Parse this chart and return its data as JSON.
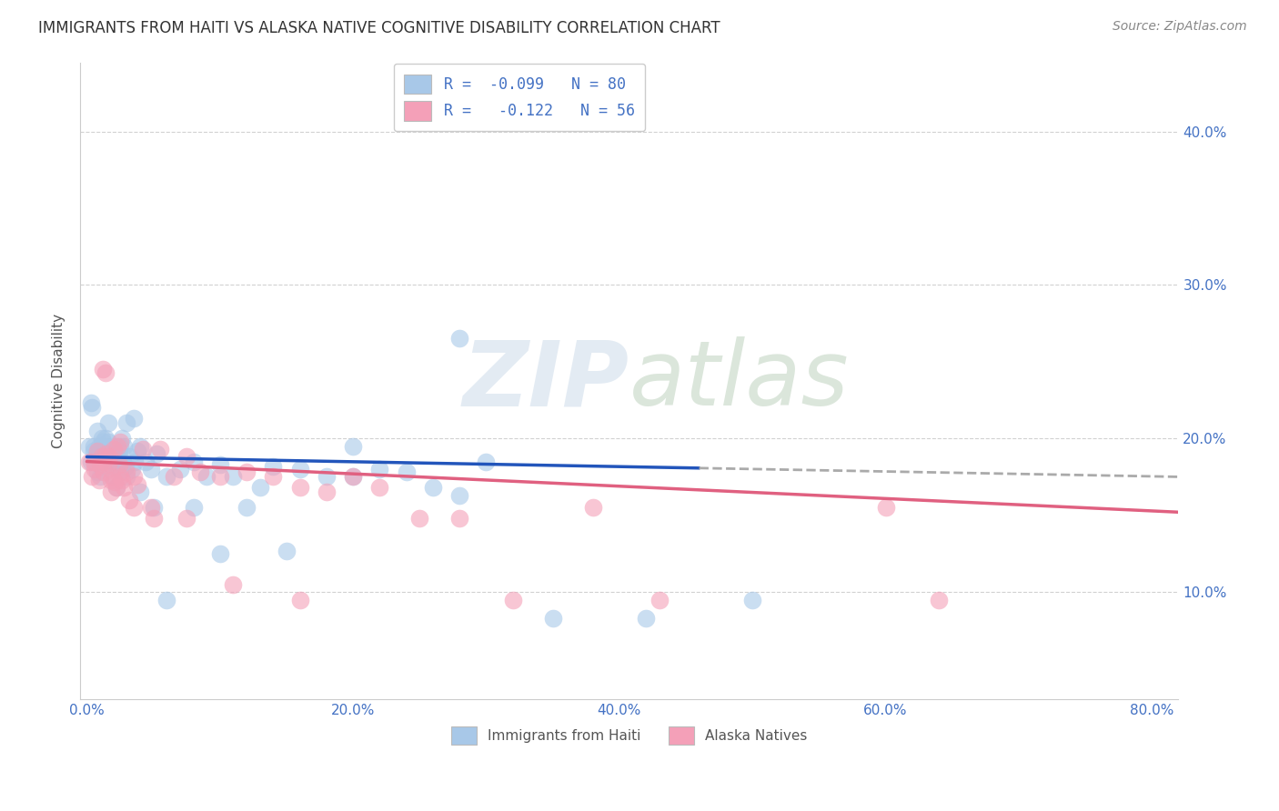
{
  "title": "IMMIGRANTS FROM HAITI VS ALASKA NATIVE COGNITIVE DISABILITY CORRELATION CHART",
  "source": "Source: ZipAtlas.com",
  "ylabel": "Cognitive Disability",
  "xlabel_ticks": [
    "0.0%",
    "20.0%",
    "40.0%",
    "60.0%",
    "80.0%"
  ],
  "xlabel_vals": [
    0.0,
    0.2,
    0.4,
    0.6,
    0.8
  ],
  "ylabel_ticks": [
    "10.0%",
    "20.0%",
    "30.0%",
    "40.0%"
  ],
  "ylabel_vals": [
    0.1,
    0.2,
    0.3,
    0.4
  ],
  "xlim": [
    -0.005,
    0.82
  ],
  "ylim": [
    0.03,
    0.445
  ],
  "legend1_label": "R =  -0.099   N = 80",
  "legend2_label": "R =   -0.122   N = 56",
  "legend_bottom1": "Immigrants from Haiti",
  "legend_bottom2": "Alaska Natives",
  "blue_color": "#A8C8E8",
  "pink_color": "#F4A0B8",
  "blue_line_color": "#2255BB",
  "pink_line_color": "#E06080",
  "dashed_line_color": "#AAAAAA",
  "watermark_color": "#C8D8E8",
  "blue_line_x_start": 0.0,
  "blue_line_x_solid_end": 0.46,
  "blue_line_x_dash_end": 0.82,
  "blue_line_y_start": 0.188,
  "blue_line_y_end": 0.175,
  "pink_line_x_start": 0.0,
  "pink_line_x_end": 0.82,
  "pink_line_y_start": 0.185,
  "pink_line_y_end": 0.152,
  "blue_scatter_x": [
    0.002,
    0.003,
    0.004,
    0.005,
    0.006,
    0.007,
    0.008,
    0.009,
    0.01,
    0.011,
    0.012,
    0.013,
    0.014,
    0.015,
    0.016,
    0.017,
    0.018,
    0.019,
    0.02,
    0.021,
    0.022,
    0.023,
    0.024,
    0.025,
    0.026,
    0.027,
    0.028,
    0.029,
    0.03,
    0.032,
    0.034,
    0.036,
    0.038,
    0.04,
    0.044,
    0.048,
    0.052,
    0.06,
    0.07,
    0.08,
    0.09,
    0.1,
    0.11,
    0.12,
    0.13,
    0.14,
    0.16,
    0.18,
    0.2,
    0.22,
    0.24,
    0.26,
    0.28,
    0.3,
    0.006,
    0.008,
    0.01,
    0.012,
    0.014,
    0.016,
    0.018,
    0.02,
    0.022,
    0.025,
    0.03,
    0.035,
    0.04,
    0.05,
    0.06,
    0.08,
    0.1,
    0.15,
    0.2,
    0.28,
    0.35,
    0.42,
    0.5,
    0.003,
    0.005,
    0.007
  ],
  "blue_scatter_y": [
    0.195,
    0.185,
    0.22,
    0.195,
    0.185,
    0.19,
    0.205,
    0.195,
    0.188,
    0.2,
    0.185,
    0.195,
    0.2,
    0.192,
    0.198,
    0.185,
    0.19,
    0.188,
    0.182,
    0.195,
    0.188,
    0.185,
    0.192,
    0.178,
    0.2,
    0.185,
    0.195,
    0.182,
    0.21,
    0.188,
    0.18,
    0.185,
    0.192,
    0.195,
    0.185,
    0.18,
    0.19,
    0.175,
    0.18,
    0.185,
    0.175,
    0.183,
    0.175,
    0.155,
    0.168,
    0.182,
    0.18,
    0.175,
    0.195,
    0.18,
    0.178,
    0.168,
    0.163,
    0.185,
    0.185,
    0.178,
    0.175,
    0.198,
    0.182,
    0.21,
    0.188,
    0.175,
    0.168,
    0.195,
    0.175,
    0.213,
    0.165,
    0.155,
    0.095,
    0.155,
    0.125,
    0.127,
    0.175,
    0.265,
    0.083,
    0.083,
    0.095,
    0.223,
    0.192,
    0.188
  ],
  "pink_scatter_x": [
    0.002,
    0.004,
    0.006,
    0.008,
    0.01,
    0.011,
    0.012,
    0.013,
    0.014,
    0.015,
    0.016,
    0.017,
    0.018,
    0.019,
    0.02,
    0.021,
    0.022,
    0.023,
    0.024,
    0.025,
    0.026,
    0.028,
    0.03,
    0.032,
    0.035,
    0.038,
    0.042,
    0.048,
    0.055,
    0.065,
    0.075,
    0.085,
    0.1,
    0.12,
    0.14,
    0.16,
    0.18,
    0.2,
    0.22,
    0.25,
    0.28,
    0.32,
    0.38,
    0.43,
    0.6,
    0.64,
    0.005,
    0.009,
    0.013,
    0.018,
    0.025,
    0.035,
    0.05,
    0.075,
    0.11,
    0.16
  ],
  "pink_scatter_y": [
    0.185,
    0.175,
    0.18,
    0.192,
    0.183,
    0.188,
    0.245,
    0.185,
    0.243,
    0.19,
    0.183,
    0.188,
    0.173,
    0.175,
    0.193,
    0.172,
    0.168,
    0.195,
    0.183,
    0.198,
    0.173,
    0.168,
    0.178,
    0.16,
    0.175,
    0.17,
    0.193,
    0.155,
    0.193,
    0.175,
    0.188,
    0.178,
    0.175,
    0.178,
    0.175,
    0.168,
    0.165,
    0.175,
    0.168,
    0.148,
    0.148,
    0.095,
    0.155,
    0.095,
    0.155,
    0.095,
    0.185,
    0.173,
    0.178,
    0.165,
    0.175,
    0.155,
    0.148,
    0.148,
    0.105,
    0.095
  ]
}
